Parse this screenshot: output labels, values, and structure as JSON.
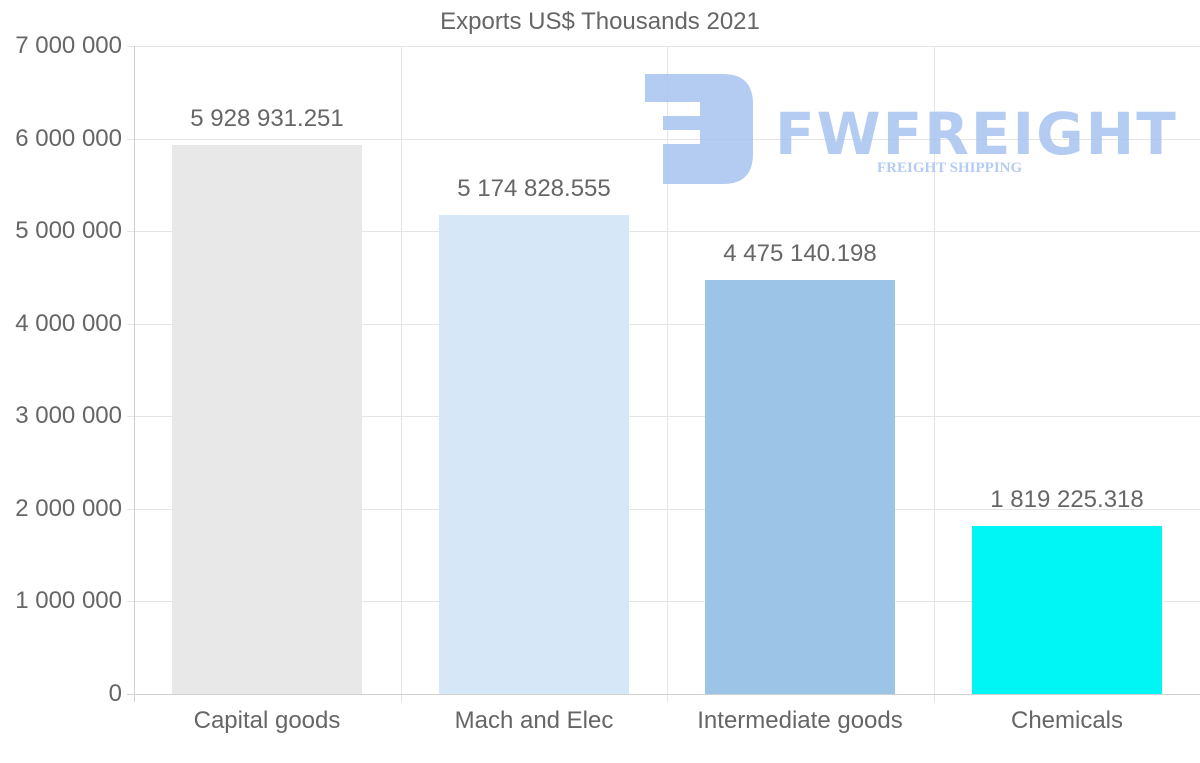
{
  "chart_data": {
    "type": "bar",
    "title": "Exports US$ Thousands 2021",
    "xlabel": "",
    "ylabel": "",
    "categories": [
      "Capital goods",
      "Mach and Elec",
      "Intermediate goods",
      "Chemicals"
    ],
    "values": [
      5928931.251,
      5174828.555,
      4475140.198,
      1819225.318
    ],
    "value_labels": [
      "5 928 931.251",
      "5 174 828.555",
      "4 475 140.198",
      "1 819 225.318"
    ],
    "colors": [
      "#e8e8e8",
      "#d6e7f8",
      "#9cc4e6",
      "#00f5f5"
    ],
    "ylim": [
      0,
      7000000
    ],
    "yticks": [
      0,
      1000000,
      2000000,
      3000000,
      4000000,
      5000000,
      6000000,
      7000000
    ],
    "ytick_labels": [
      "0",
      "1 000 000",
      "2 000 000",
      "3 000 000",
      "4 000 000",
      "5 000 000",
      "6 000 000",
      "7 000 000"
    ],
    "grid": true,
    "legend": "none"
  },
  "watermark": {
    "brand": "FWFREIGHT",
    "tagline": "FREIGHT SHIPPING",
    "color": "#a8c4f0"
  }
}
